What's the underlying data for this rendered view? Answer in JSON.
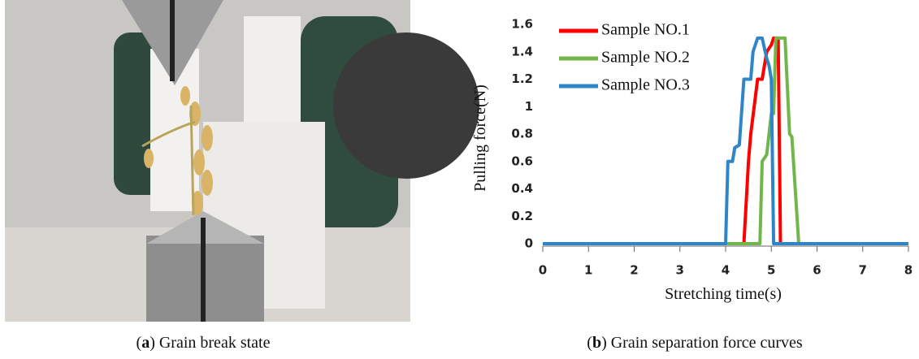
{
  "chart_data": {
    "type": "line",
    "x_label": "Stretching time(s)",
    "y_label": "Pulling force(N)",
    "xlim": [
      0,
      8
    ],
    "xticks": [
      0,
      1,
      2,
      3,
      4,
      5,
      6,
      7,
      8
    ],
    "ylim": [
      0,
      1.6
    ],
    "yticks": [
      0,
      0.2,
      0.4,
      0.6,
      0.8,
      1,
      1.2,
      1.4,
      1.6
    ],
    "legend": "upper left",
    "series": [
      {
        "name": "Sample NO.1",
        "color": "#ff0000",
        "x": [
          0,
          4.4,
          4.5,
          4.55,
          4.7,
          4.8,
          4.9,
          5.0,
          5.05,
          5.15,
          5.2,
          8
        ],
        "values": [
          0,
          0,
          0.6,
          0.8,
          1.2,
          1.2,
          1.4,
          1.45,
          1.5,
          1.5,
          0,
          0
        ]
      },
      {
        "name": "Sample NO.2",
        "color": "#70b64a",
        "x": [
          0,
          4.75,
          4.8,
          4.9,
          5.0,
          5.05,
          5.1,
          5.3,
          5.4,
          5.45,
          5.6,
          8
        ],
        "values": [
          0,
          0,
          0.6,
          0.65,
          0.95,
          0.95,
          1.5,
          1.5,
          0.8,
          0.78,
          0,
          0
        ]
      },
      {
        "name": "Sample NO.3",
        "color": "#2e86c8",
        "x": [
          0,
          4.0,
          4.05,
          4.15,
          4.2,
          4.3,
          4.4,
          4.55,
          4.6,
          4.7,
          4.8,
          4.9,
          4.95,
          5.0,
          5.05,
          8
        ],
        "values": [
          0,
          0,
          0.6,
          0.6,
          0.7,
          0.72,
          1.2,
          1.2,
          1.4,
          1.5,
          1.5,
          1.35,
          1.3,
          1.2,
          0,
          0
        ]
      }
    ]
  },
  "captions": [
    [
      "(",
      "a",
      ") Grain break state"
    ],
    [
      "(",
      "b",
      ") Grain separation force curves"
    ]
  ]
}
